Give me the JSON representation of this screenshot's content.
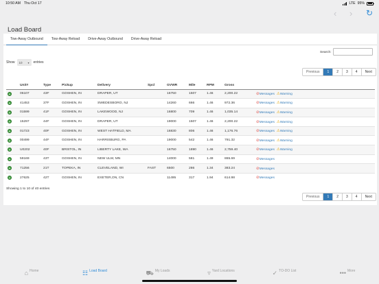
{
  "status_bar": {
    "time": "10:50 AM",
    "date": "Thu Oct 17",
    "network": "LTE",
    "battery": "95%"
  },
  "nav": {
    "back_icon": "chevron-left-icon",
    "forward_icon": "chevron-right-icon",
    "refresh_icon": "refresh-icon"
  },
  "page_title": "Load Board",
  "tabs": [
    {
      "label": "Tow-Away Outbound",
      "active": true
    },
    {
      "label": "Tow-Away Reload"
    },
    {
      "label": "Drive-Away Outbound"
    },
    {
      "label": "Drive-Away Reload"
    }
  ],
  "search": {
    "label": "Search:",
    "value": ""
  },
  "length": {
    "show": "Show",
    "value": "10",
    "entries": "entries"
  },
  "pagination": {
    "previous": "Previous",
    "pages": [
      "1",
      "2",
      "3",
      "4"
    ],
    "current": "1",
    "next": "Next"
  },
  "table": {
    "columns": [
      "Unit#",
      "Type",
      "Pickup",
      "Delivery",
      "Spcl",
      "GVWR",
      "Mile",
      "RPM",
      "Gross"
    ],
    "messages_label": "Messages",
    "warning_label": "Warning",
    "rows": [
      {
        "unit": "06107",
        "type": "43F",
        "pickup": "GOSHEN, IN",
        "delivery": "DRAPER, UT",
        "spcl": "",
        "gvwr": "16750",
        "mile": "1507",
        "rpm": "1.46",
        "gross": "2,200.22",
        "warning": true
      },
      {
        "unit": "41453",
        "type": "37F",
        "pickup": "GOSHEN, IN",
        "delivery": "SWEDESBORO, NJ",
        "spcl": "",
        "gvwr": "14260",
        "mile": "666",
        "rpm": "1.46",
        "gross": "972.36",
        "warning": true
      },
      {
        "unit": "01599",
        "type": "41F",
        "pickup": "GOSHEN, IN",
        "delivery": "LAKEWOOD, NJ",
        "spcl": "",
        "gvwr": "16800",
        "mile": "709",
        "rpm": "1.46",
        "gross": "1,035.14",
        "warning": true
      },
      {
        "unit": "15297",
        "type": "44F",
        "pickup": "GOSHEN, IN",
        "delivery": "DRAPER, UT",
        "spcl": "",
        "gvwr": "19000",
        "mile": "1507",
        "rpm": "1.46",
        "gross": "2,200.22",
        "warning": true
      },
      {
        "unit": "01723",
        "type": "40F",
        "pickup": "GOSHEN, IN",
        "delivery": "WEST HATFIELD, MA",
        "spcl": "",
        "gvwr": "16830",
        "mile": "806",
        "rpm": "1.46",
        "gross": "1,176.76",
        "warning": true
      },
      {
        "unit": "00499",
        "type": "44F",
        "pickup": "GOSHEN, IN",
        "delivery": "HARRISBURG, PA",
        "spcl": "",
        "gvwr": "19000",
        "mile": "542",
        "rpm": "1.46",
        "gross": "791.32",
        "warning": true
      },
      {
        "unit": "U0202",
        "type": "40F",
        "pickup": "BRISTOL, IN",
        "delivery": "LIBERTY LAKE, WA",
        "spcl": "",
        "gvwr": "16750",
        "mile": "1890",
        "rpm": "1.46",
        "gross": "2,759.40",
        "warning": true
      },
      {
        "unit": "59169",
        "type": "43T",
        "pickup": "GOSHEN, IN",
        "delivery": "NEW ULM, MN",
        "spcl": "",
        "gvwr": "14000",
        "mile": "581",
        "rpm": "1.49",
        "gross": "865.69",
        "warning": false
      },
      {
        "unit": "71256",
        "type": "21T",
        "pickup": "TOPEKA, IN",
        "delivery": "CLEVELAND, WI",
        "spcl": "FAST",
        "gvwr": "6500",
        "mile": "286",
        "rpm": "1.34",
        "gross": "383.24",
        "warning": false
      },
      {
        "unit": "27625",
        "type": "42T",
        "pickup": "GOSHEN, IN",
        "delivery": "EXETER,ON, CN",
        "spcl": "",
        "gvwr": "11495",
        "mile": "317",
        "rpm": "1.94",
        "gross": "614.98",
        "warning": false
      }
    ]
  },
  "info": "Showing 1 to 10 of 40 entries",
  "tab_bar": [
    {
      "label": "Home",
      "icon": "home-icon"
    },
    {
      "label": "Load Board",
      "icon": "clipboard-icon",
      "active": true
    },
    {
      "label": "My Loads",
      "icon": "truck-icon"
    },
    {
      "label": "Yard Locations",
      "icon": "location-pin-icon"
    },
    {
      "label": "TO-DO List",
      "icon": "checkmark-circle-icon"
    },
    {
      "label": "More",
      "icon": "more-dots-icon"
    }
  ],
  "colors": {
    "accent": "#337ab7",
    "ios_blue": "#2f8bd6",
    "add_green": "#3d9c3d",
    "no_red": "#d9534f",
    "warn_amber": "#e0a200"
  }
}
